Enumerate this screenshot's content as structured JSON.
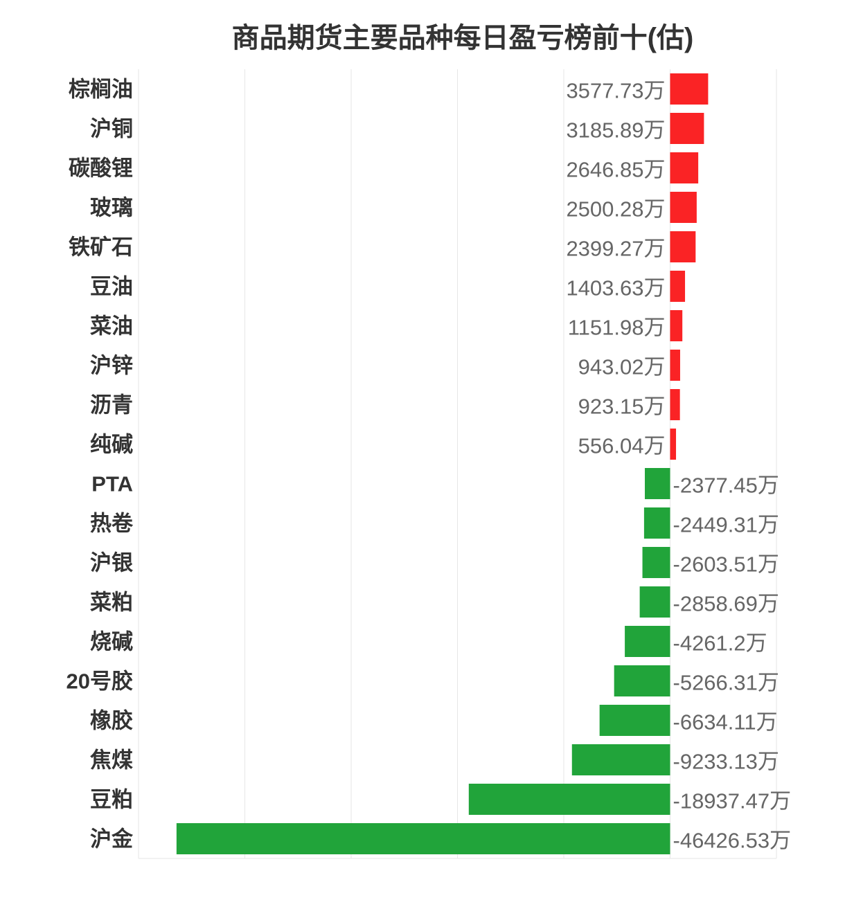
{
  "chart_data": {
    "type": "bar",
    "orientation": "horizontal",
    "title": "商品期货主要品种每日盈亏榜前十(估)",
    "unit_suffix": "万",
    "categories": [
      "棕榈油",
      "沪铜",
      "碳酸锂",
      "玻璃",
      "铁矿石",
      "豆油",
      "菜油",
      "沪锌",
      "沥青",
      "纯碱",
      "PTA",
      "热卷",
      "沪银",
      "菜粕",
      "烧碱",
      "20号胶",
      "橡胶",
      "焦煤",
      "豆粕",
      "沪金"
    ],
    "values": [
      3577.73,
      3185.89,
      2646.85,
      2500.28,
      2399.27,
      1403.63,
      1151.98,
      943.02,
      923.15,
      556.04,
      -2377.45,
      -2449.31,
      -2603.51,
      -2858.69,
      -4261.2,
      -5266.31,
      -6634.11,
      -9233.13,
      -18937.47,
      -46426.53
    ],
    "labels": [
      "3577.73万",
      "3185.89万",
      "2646.85万",
      "2500.28万",
      "2399.27万",
      "1403.63万",
      "1151.98万",
      "943.02万",
      "923.15万",
      "556.04万",
      "-2377.45万",
      "-2449.31万",
      "-2603.51万",
      "-2858.69万",
      "-4261.2万",
      "-5266.31万",
      "-6634.11万",
      "-9233.13万",
      "-18937.47万",
      "-46426.53万"
    ],
    "xlim": [
      -50000,
      10000
    ],
    "grid_step": 10000,
    "grid": true,
    "legend": "none",
    "colors": {
      "positive": "#fa2325",
      "negative": "#21a43a",
      "grid": "#e6e6e6",
      "label": "#666666",
      "category": "#333333"
    }
  }
}
